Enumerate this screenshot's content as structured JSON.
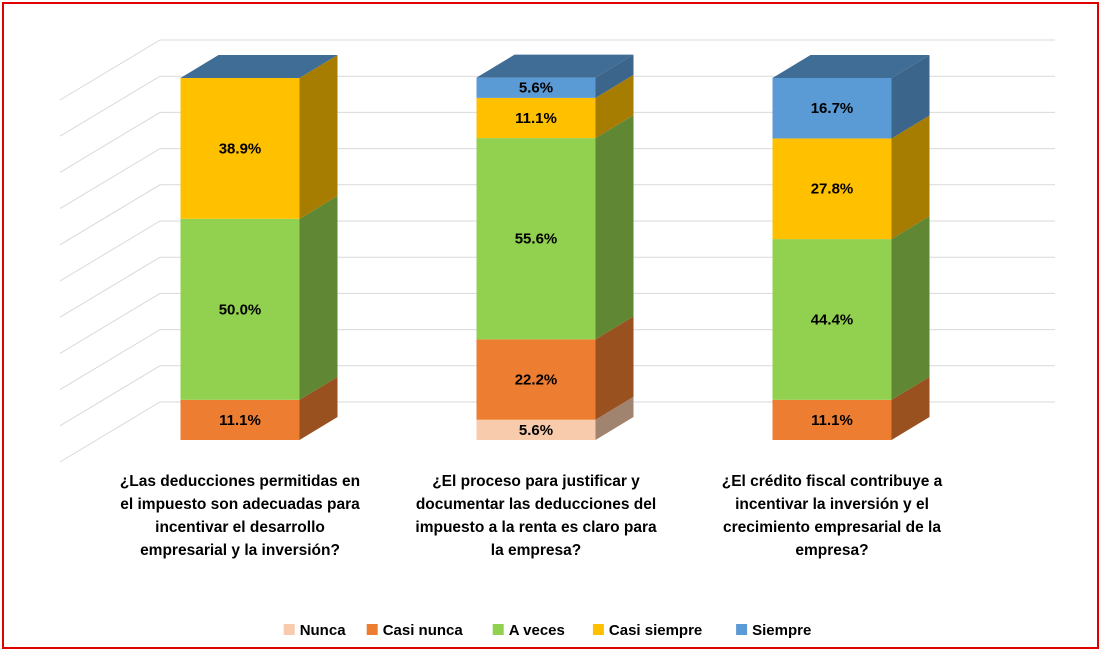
{
  "chart_data": {
    "type": "bar3d_stacked",
    "categories": [
      "¿Las deducciones permitidas en el impuesto son adecuadas para incentivar el desarrollo empresarial y la inversión?",
      "¿El proceso para justificar y documentar las deducciones del impuesto a la renta es claro para la empresa?",
      "¿El crédito fiscal contribuye a incentivar la inversión y el crecimiento empresarial de la empresa?"
    ],
    "series": [
      {
        "name": "Nunca",
        "color": "#f8cbad",
        "values": [
          0,
          5.6,
          0
        ],
        "value_labels": [
          null,
          "5.6%",
          null
        ]
      },
      {
        "name": "Casi nunca",
        "color": "#ed7d31",
        "values": [
          11.1,
          22.2,
          11.1
        ],
        "value_labels": [
          "11.1%",
          "22.2%",
          "11.1%"
        ]
      },
      {
        "name": "A veces",
        "color": "#92d050",
        "values": [
          50.0,
          55.6,
          44.4
        ],
        "value_labels": [
          "50.0%",
          "55.6%",
          "44.4%"
        ]
      },
      {
        "name": "Casi siempre",
        "color": "#ffc000",
        "values": [
          38.9,
          11.1,
          27.8
        ],
        "value_labels": [
          "38.9%",
          "11.1%",
          "27.8%"
        ]
      },
      {
        "name": "Siempre",
        "color": "#5b9bd5",
        "values": [
          0,
          5.6,
          16.7
        ],
        "value_labels": [
          null,
          "5.6%",
          "16.7%"
        ]
      }
    ],
    "ylim": [
      0,
      100
    ],
    "yticks": [
      0,
      10,
      20,
      30,
      40,
      50,
      60,
      70,
      80,
      90,
      100
    ],
    "grid": true,
    "legend": "bottom"
  }
}
